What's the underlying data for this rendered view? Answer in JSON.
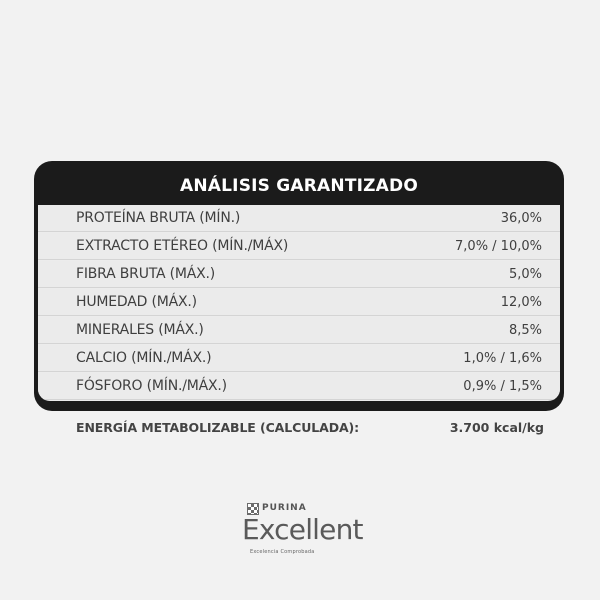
{
  "table": {
    "title": "ANÁLISIS GARANTIZADO",
    "rows": [
      {
        "label": "PROTEÍNA BRUTA (MÍN.)",
        "value": "36,0%"
      },
      {
        "label": "EXTRACTO ETÉREO (MÍN./MÁX)",
        "value": "7,0% / 10,0%"
      },
      {
        "label": "FIBRA BRUTA (MÁX.)",
        "value": "5,0%"
      },
      {
        "label": "HUMEDAD (MÁX.)",
        "value": "12,0%"
      },
      {
        "label": "MINERALES (MÁX.)",
        "value": "8,5%"
      },
      {
        "label": "CALCIO (MÍN./MÁX.)",
        "value": "1,0% / 1,6%"
      },
      {
        "label": "FÓSFORO (MÍN./MÁX.)",
        "value": "0,9% / 1,5%"
      }
    ]
  },
  "energy": {
    "label": "ENERGÍA METABOLIZABLE (CALCULADA):",
    "value": "3.700 kcal/kg"
  },
  "logo": {
    "badge": "PURINA",
    "brand": "Excellent",
    "tagline": "Excelencia Comprobada"
  },
  "colors": {
    "background": "#f2f2f2",
    "header": "#1b1b1b",
    "row": "#ebebeb",
    "text": "#3f3f3f"
  }
}
